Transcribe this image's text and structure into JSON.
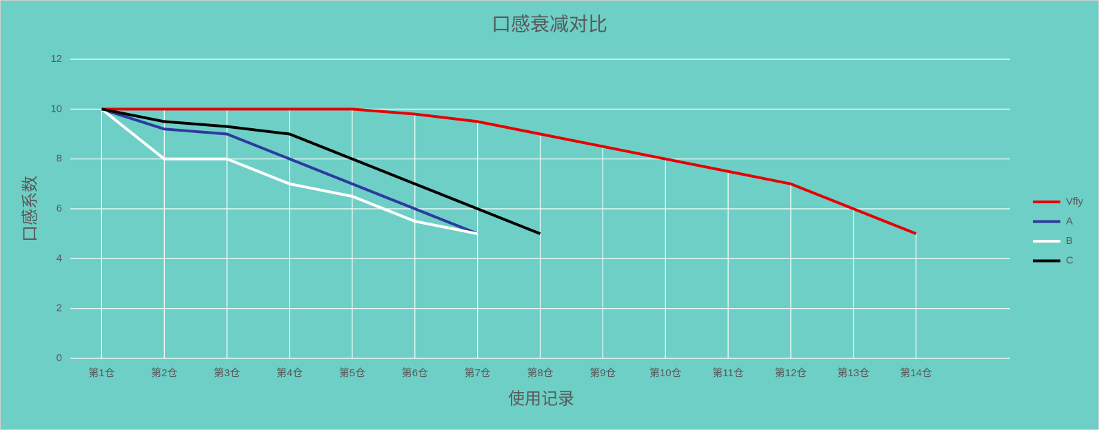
{
  "chart_data": {
    "type": "line",
    "title": "口感衰减对比",
    "x_label": "使用记录",
    "y_label": "口感系数",
    "categories": [
      "第1仓",
      "第2仓",
      "第3仓",
      "第4仓",
      "第5仓",
      "第6仓",
      "第7仓",
      "第8仓",
      "第9仓",
      "第10仓",
      "第11仓",
      "第12仓",
      "第13仓",
      "第14仓",
      null
    ],
    "series": [
      {
        "name": "Vfly",
        "color": "#e60000",
        "values": [
          10,
          10,
          10,
          10,
          10,
          9.8,
          9.5,
          9,
          8.5,
          8,
          7.5,
          7,
          6,
          5,
          null
        ]
      },
      {
        "name": "A",
        "color": "#2e3a9e",
        "values": [
          10,
          9.2,
          9,
          8,
          7,
          6,
          5,
          null,
          null,
          null,
          null,
          null,
          null,
          null,
          null
        ]
      },
      {
        "name": "B",
        "color": "#ffffff",
        "values": [
          10,
          8,
          8,
          7,
          6.5,
          5.5,
          5,
          null,
          null,
          null,
          null,
          null,
          null,
          null,
          null
        ]
      },
      {
        "name": "C",
        "color": "#000000",
        "values": [
          10,
          9.5,
          9.3,
          9,
          8,
          7,
          6,
          5,
          null,
          null,
          null,
          null,
          null,
          null,
          null
        ]
      }
    ],
    "ylim": [
      0,
      12
    ],
    "yticks": [
      0,
      2,
      4,
      6,
      8,
      10,
      12
    ],
    "grid": true,
    "drop_lines": true,
    "legend": "right"
  }
}
